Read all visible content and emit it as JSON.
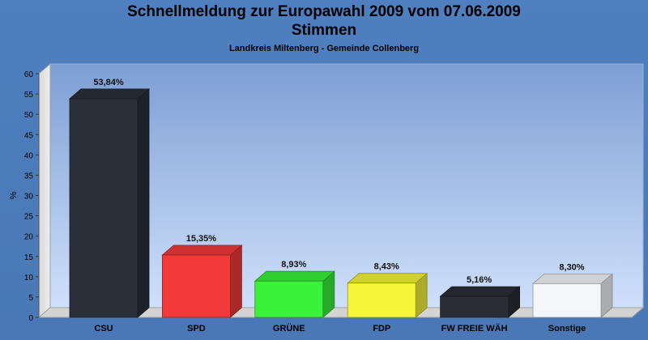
{
  "title": "Schnellmeldung zur Europawahl 2009 vom 07.06.2009",
  "subtitle": "Stimmen",
  "caption": "Landkreis Miltenberg - Gemeinde Collenberg",
  "chart_data": {
    "type": "bar",
    "title": "Schnellmeldung zur Europawahl 2009 vom 07.06.2009",
    "subtitle": "Stimmen",
    "ylabel": "%",
    "xlabel": "",
    "ylim": [
      0,
      60
    ],
    "yticks": [
      0,
      5,
      10,
      15,
      20,
      25,
      30,
      35,
      40,
      45,
      50,
      55,
      60
    ],
    "grid": false,
    "legend": "none",
    "categories": [
      "CSU",
      "SPD",
      "GRÜNE",
      "FDP",
      "FW FREIE WÄH",
      "Sonstige"
    ],
    "values": [
      53.84,
      15.35,
      8.93,
      8.43,
      5.16,
      8.3
    ],
    "value_labels": [
      "53,84%",
      "15,35%",
      "8,93%",
      "8,43%",
      "5,16%",
      "8,30%"
    ],
    "colors": [
      "#2a2f3a",
      "#f23a3a",
      "#3af23a",
      "#f5f53a",
      "#2a2d35",
      "#f4f6fa"
    ]
  }
}
